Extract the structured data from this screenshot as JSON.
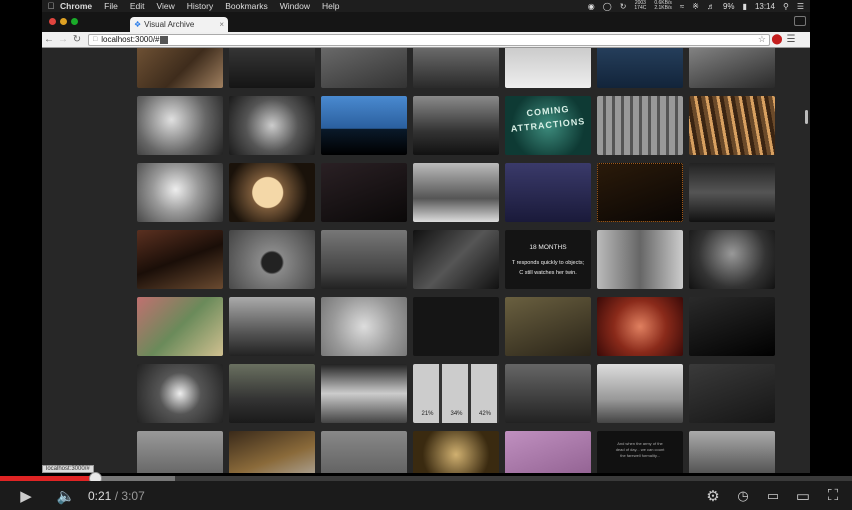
{
  "menubar": {
    "apple": "",
    "items": [
      "Chrome",
      "File",
      "Edit",
      "View",
      "History",
      "Bookmarks",
      "Window",
      "Help"
    ],
    "stat_a": "2003",
    "stat_b": "174C",
    "net_up": "0.6KB/s",
    "net_down": "2.1KB/s",
    "battery": "9%",
    "clock": "13:14"
  },
  "browser": {
    "tab_title": "Visual Archive",
    "url": "localhost:3000/#",
    "status_url": "localhost:3000/#"
  },
  "tiles": {
    "coming_l1": "COMING",
    "coming_l2": "ATTRACTIONS",
    "months_title": "18 MONTHS",
    "months_l1": "T responds quickly to objects;",
    "months_l2": "C still watches her twin.",
    "pct_1": "21%",
    "pct_2": "34%",
    "pct_3": "42%",
    "caption_l1": "And when the army of the",
    "caption_l2": "dead of day... we can count",
    "caption_l3": "the farewell formality..."
  },
  "player": {
    "current_time": "0:21",
    "separator": "/",
    "duration": "3:07",
    "progress_fraction": 0.112,
    "buffered_fraction": 0.205
  },
  "colors": {
    "accent_red": "#e02424",
    "page_bg": "#272727"
  }
}
